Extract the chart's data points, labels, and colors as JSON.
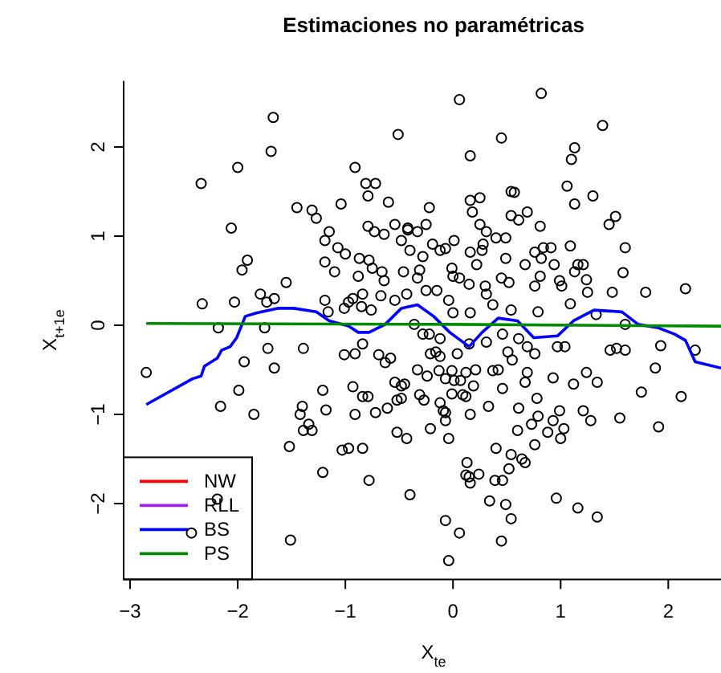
{
  "chart_data": {
    "type": "scatter",
    "title": "Estimaciones no paramétricas",
    "xlabel": "X$_{te}$",
    "ylabel": "X$_{t+1e}$",
    "xlim": [
      -3.06,
      2.49
    ],
    "ylim": [
      -2.85,
      2.74
    ],
    "xticks": [
      -3,
      -2,
      -1,
      0,
      1,
      2
    ],
    "yticks": [
      -2,
      -1,
      0,
      1,
      2
    ],
    "legend": "bottom left",
    "series": [
      {
        "marker": "circle",
        "color": "#000000",
        "x": [
          -1.67,
          -0.51,
          -1.69,
          -2.0,
          -2.34,
          -0.91,
          -0.81,
          -0.72,
          -0.79,
          -0.6,
          -1.04,
          -1.45,
          -1.31,
          -1.27,
          -2.06,
          -1.15,
          -1.19,
          -1.07,
          -1.0,
          -0.79,
          -0.73,
          -0.64,
          -0.54,
          -0.42,
          -0.48,
          -0.4,
          -1.91,
          -1.96,
          -1.19,
          -1.1,
          -0.87,
          -0.78,
          -0.75,
          -0.66,
          -0.88,
          -0.64,
          -0.46,
          -1.55,
          -2.33,
          -2.03,
          -1.79,
          -1.66,
          -1.73,
          -1.19,
          -1.16,
          -0.97,
          -0.93,
          -0.84,
          -0.67,
          -0.43,
          -1.01,
          -0.85,
          -0.76,
          -0.54,
          -2.18,
          -1.75,
          0.06,
          0.82,
          1.39,
          0.45,
          0.16,
          1.13,
          1.1,
          1.06,
          1.3,
          1.13,
          0.54,
          0.57,
          0.16,
          0.25,
          0.18,
          -0.22,
          0.54,
          0.61,
          0.69,
          0.81,
          1.51,
          1.45,
          0.25,
          0.31,
          0.4,
          0.49,
          0.01,
          -0.12,
          -0.07,
          -0.42,
          -0.33,
          -0.25,
          -0.28,
          -0.19,
          0.28,
          0.27,
          0.16,
          0.22,
          0.49,
          0.67,
          0.76,
          0.84,
          0.91,
          0.82,
          0.94,
          1.09,
          1.6,
          1.16,
          1.21,
          1.13,
          0.81,
          0.76,
          0.99,
          1.01,
          1.24,
          1.25,
          1.09,
          1.48,
          1.79,
          2.16,
          1.58,
          -0.31,
          -0.33,
          -0.01,
          0.0,
          0.06,
          0.15,
          0.3,
          0.31,
          0.45,
          0.52,
          -0.25,
          -0.15,
          -0.04,
          0.37,
          0.54,
          0.0,
          0.16,
          0.79,
          1.33,
          1.6,
          -0.36,
          -2.85,
          -1.72,
          -1.94,
          -1.39,
          -1.66,
          -1.99,
          -2.16,
          -1.85,
          -1.4,
          -1.42,
          -1.34,
          -1.31,
          -1.39,
          -1.21,
          -1.18,
          -1.01,
          -0.91,
          -0.84,
          -0.69,
          -0.63,
          -0.58,
          -0.93,
          -0.84,
          -0.79,
          -0.91,
          -0.72,
          -0.61,
          -0.54,
          -0.45,
          -0.52,
          -0.48,
          -1.52,
          -1.03,
          -0.97,
          -0.84,
          -0.52,
          -0.43,
          -1.21,
          -0.78,
          -0.4,
          -2.19,
          -2.43,
          -1.51,
          -0.28,
          -0.22,
          -0.12,
          0.04,
          -0.21,
          -0.16,
          -0.12,
          0.15,
          0.31,
          0.46,
          0.51,
          0.55,
          0.61,
          0.69,
          0.76,
          0.97,
          1.04,
          1.46,
          1.52,
          1.6,
          1.93,
          2.25,
          1.88,
          -0.33,
          -0.24,
          -0.13,
          -0.07,
          -0.01,
          0.01,
          0.07,
          0.12,
          0.21,
          0.19,
          0.09,
          0.12,
          -0.01,
          -0.31,
          -0.27,
          -0.48,
          -0.12,
          -0.09,
          -0.07,
          -0.07,
          0.16,
          0.37,
          0.42,
          0.46,
          0.69,
          0.67,
          0.93,
          1.12,
          1.24,
          1.34,
          0.78,
          0.61,
          0.33,
          1.75,
          2.12,
          0.79,
          0.73,
          0.6,
          0.88,
          0.93,
          0.99,
          1.03,
          1.0,
          1.21,
          1.28,
          1.55,
          1.91,
          0.76,
          -0.21,
          -0.04,
          0.4,
          0.54,
          0.52,
          0.64,
          0.67,
          0.13,
          0.12,
          0.15,
          0.16,
          0.24,
          0.39,
          0.46,
          0.34,
          0.49,
          0.54,
          0.96,
          1.16,
          1.34,
          -0.07,
          0.06,
          0.45,
          -0.04
        ],
        "values": [
          2.33,
          2.14,
          1.95,
          1.77,
          1.59,
          1.77,
          1.59,
          1.59,
          1.45,
          1.38,
          1.36,
          1.32,
          1.29,
          1.2,
          1.09,
          1.05,
          0.95,
          0.87,
          0.8,
          1.11,
          1.05,
          1.02,
          1.13,
          1.07,
          0.95,
          0.84,
          0.73,
          0.62,
          0.71,
          0.6,
          0.75,
          0.73,
          0.64,
          0.6,
          0.55,
          0.5,
          0.6,
          0.48,
          0.24,
          0.26,
          0.35,
          0.3,
          0.26,
          0.28,
          0.15,
          0.26,
          0.3,
          0.35,
          0.33,
          0.35,
          0.19,
          0.21,
          0.17,
          0.28,
          -0.03,
          -0.03,
          2.53,
          2.6,
          2.24,
          2.1,
          1.9,
          1.99,
          1.86,
          1.56,
          1.45,
          1.36,
          1.5,
          1.49,
          1.4,
          1.43,
          1.27,
          1.32,
          1.23,
          1.18,
          1.27,
          1.11,
          1.22,
          1.13,
          1.13,
          1.05,
          0.98,
          0.98,
          0.95,
          0.84,
          0.86,
          1.09,
          1.05,
          1.13,
          0.77,
          0.91,
          0.91,
          0.84,
          0.82,
          0.68,
          0.75,
          0.68,
          0.82,
          0.87,
          0.87,
          0.75,
          0.68,
          0.89,
          0.87,
          0.68,
          0.68,
          0.6,
          0.55,
          0.44,
          0.5,
          0.44,
          0.51,
          0.37,
          0.24,
          0.37,
          0.37,
          0.41,
          0.59,
          0.62,
          0.53,
          0.64,
          0.55,
          0.53,
          0.46,
          0.44,
          0.35,
          0.53,
          0.48,
          0.39,
          0.39,
          0.28,
          0.23,
          0.17,
          0.14,
          0.14,
          0.15,
          0.12,
          0.01,
          0.01,
          -0.53,
          -0.26,
          -0.41,
          -0.26,
          -0.48,
          -0.73,
          -0.91,
          -1.0,
          -0.91,
          -1.0,
          -1.11,
          -1.18,
          -1.18,
          -0.73,
          -0.95,
          -0.33,
          -0.32,
          -0.21,
          -0.33,
          -0.42,
          -0.37,
          -0.69,
          -0.8,
          -0.8,
          -1.0,
          -0.98,
          -0.93,
          -0.64,
          -0.66,
          -0.84,
          -0.82,
          -1.36,
          -1.4,
          -1.38,
          -1.38,
          -1.2,
          -1.27,
          -1.65,
          -1.74,
          -1.9,
          -1.95,
          -2.33,
          -2.41,
          -0.1,
          -0.1,
          -0.15,
          -0.32,
          -0.32,
          -0.3,
          -0.35,
          -0.21,
          -0.19,
          -0.1,
          -0.3,
          -0.39,
          -0.15,
          -0.24,
          -0.32,
          -0.24,
          -0.24,
          -0.28,
          -0.26,
          -0.28,
          -0.23,
          -0.28,
          -0.48,
          -0.5,
          -0.57,
          -0.51,
          -0.6,
          -0.51,
          -0.62,
          -0.62,
          -0.53,
          -0.5,
          -0.68,
          -0.78,
          -0.8,
          -0.77,
          -0.78,
          -0.84,
          -0.68,
          -0.87,
          -0.96,
          -0.98,
          -1.07,
          -1.0,
          -0.51,
          -0.5,
          -0.71,
          -0.53,
          -0.64,
          -0.59,
          -0.66,
          -0.53,
          -0.64,
          -0.82,
          -0.93,
          -0.91,
          -0.75,
          -0.8,
          -1.02,
          -1.11,
          -1.18,
          -1.2,
          -1.07,
          -0.96,
          -1.16,
          -1.27,
          -0.96,
          -1.07,
          -1.04,
          -1.14,
          -1.34,
          -1.16,
          -1.27,
          -1.38,
          -1.45,
          -1.61,
          -1.5,
          -1.54,
          -1.54,
          -1.68,
          -1.7,
          -1.77,
          -1.67,
          -1.74,
          -1.74,
          -1.97,
          -2.01,
          -2.17,
          -1.94,
          -2.05,
          -2.15,
          -2.19,
          -2.33,
          -2.42,
          -2.64
        ]
      },
      {
        "name": "NW",
        "type": "line",
        "color": "#ff0000"
      },
      {
        "name": "RLL",
        "type": "line",
        "color": "#a020f0"
      },
      {
        "name": "BS",
        "type": "line",
        "color": "#0000ff",
        "x": [
          -2.85,
          -2.42,
          -2.34,
          -2.31,
          -2.19,
          -2.15,
          -2.07,
          -2.01,
          -1.93,
          -1.82,
          -1.63,
          -1.48,
          -1.27,
          -1.15,
          -0.97,
          -0.88,
          -0.78,
          -0.63,
          -0.48,
          -0.33,
          -0.18,
          -0.03,
          0.15,
          0.27,
          0.42,
          0.6,
          0.75,
          0.97,
          1.12,
          1.31,
          1.57,
          1.72,
          1.91,
          2.06,
          2.16,
          2.25,
          2.49
        ],
        "values": [
          -0.89,
          -0.6,
          -0.57,
          -0.46,
          -0.37,
          -0.28,
          -0.24,
          -0.14,
          0.1,
          0.14,
          0.19,
          0.19,
          0.15,
          0.05,
          -0.01,
          -0.08,
          -0.08,
          0.01,
          0.19,
          0.23,
          0.1,
          -0.08,
          -0.24,
          -0.08,
          0.08,
          0.05,
          -0.14,
          -0.12,
          0.05,
          0.17,
          0.15,
          0.01,
          -0.03,
          -0.1,
          -0.17,
          -0.41,
          -0.48
        ]
      },
      {
        "name": "PS",
        "type": "line",
        "color": "#008b00",
        "x": [
          -2.85,
          0,
          2.49
        ],
        "values": [
          0.02,
          0.01,
          -0.01
        ]
      }
    ]
  }
}
